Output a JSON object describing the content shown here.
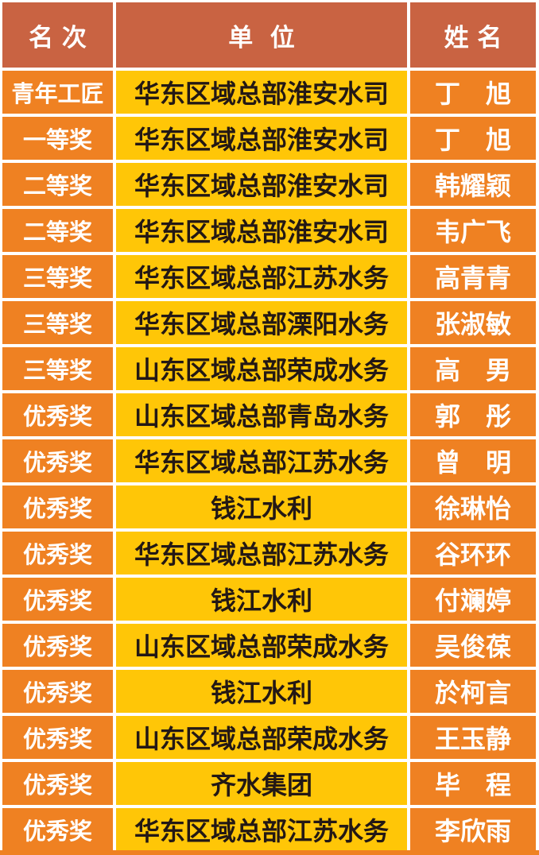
{
  "table": {
    "columns": [
      {
        "key": "rank",
        "label": "名 次"
      },
      {
        "key": "unit",
        "label": "单  位"
      },
      {
        "key": "name",
        "label": "姓 名"
      }
    ],
    "rows": [
      {
        "rank": "青年工匠",
        "unit": "华东区域总部淮安水司",
        "name": "丁　旭"
      },
      {
        "rank": "一等奖",
        "unit": "华东区域总部淮安水司",
        "name": "丁　旭"
      },
      {
        "rank": "二等奖",
        "unit": "华东区域总部淮安水司",
        "name": "韩耀颖"
      },
      {
        "rank": "二等奖",
        "unit": "华东区域总部淮安水司",
        "name": "韦广飞"
      },
      {
        "rank": "三等奖",
        "unit": "华东区域总部江苏水务",
        "name": "高青青"
      },
      {
        "rank": "三等奖",
        "unit": "华东区域总部溧阳水务",
        "name": "张淑敏"
      },
      {
        "rank": "三等奖",
        "unit": "山东区域总部荣成水务",
        "name": "高　男"
      },
      {
        "rank": "优秀奖",
        "unit": "山东区域总部青岛水务",
        "name": "郭　彤"
      },
      {
        "rank": "优秀奖",
        "unit": "华东区域总部江苏水务",
        "name": "曾　明"
      },
      {
        "rank": "优秀奖",
        "unit": "钱江水利",
        "name": "徐琳怡"
      },
      {
        "rank": "优秀奖",
        "unit": "华东区域总部江苏水务",
        "name": "谷环环"
      },
      {
        "rank": "优秀奖",
        "unit": "钱江水利",
        "name": "付斓婷"
      },
      {
        "rank": "优秀奖",
        "unit": "山东区域总部荣成水务",
        "name": "吴俊葆"
      },
      {
        "rank": "优秀奖",
        "unit": "钱江水利",
        "name": "於柯言"
      },
      {
        "rank": "优秀奖",
        "unit": "山东区域总部荣成水务",
        "name": "王玉静"
      },
      {
        "rank": "优秀奖",
        "unit": "齐水集团",
        "name": "毕　程"
      },
      {
        "rank": "优秀奖",
        "unit": "华东区域总部江苏水务",
        "name": "李欣雨"
      }
    ],
    "colors": {
      "header_bg": "#C96342",
      "header_text": "#FFFFFF",
      "rank_bg": "#EF8122",
      "rank_text": "#FFFFFF",
      "unit_bg": "#FFC607",
      "unit_text": "#231815",
      "gutter": "#FFFFFF"
    }
  }
}
